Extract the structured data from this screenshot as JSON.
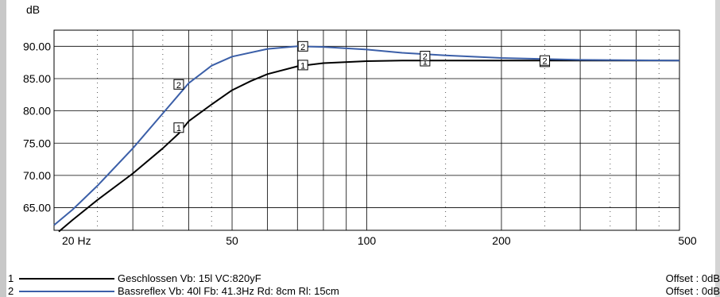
{
  "chart_data": {
    "type": "line",
    "y_unit_label": "dB",
    "x_scale": "log",
    "xlim": [
      20,
      500
    ],
    "ylim": [
      61.5,
      92.5
    ],
    "x_tick_labels": [
      {
        "value": 20,
        "label": "20 Hz"
      },
      {
        "value": 50,
        "label": "50"
      },
      {
        "value": 100,
        "label": "100"
      },
      {
        "value": 200,
        "label": "200"
      },
      {
        "value": 500,
        "label": "500"
      }
    ],
    "y_tick_labels": [
      {
        "value": 90,
        "label": "90.00"
      },
      {
        "value": 85,
        "label": "85.00"
      },
      {
        "value": 80,
        "label": "80.00"
      },
      {
        "value": 75,
        "label": "75.00"
      },
      {
        "value": 70,
        "label": "70.00"
      },
      {
        "value": 65,
        "label": "65.00"
      }
    ],
    "x_major_grid": [
      20,
      30,
      40,
      50,
      60,
      70,
      80,
      90,
      100,
      200,
      300,
      400,
      500
    ],
    "x_minor_dotted_grid": [
      25,
      35,
      45,
      150,
      250,
      350,
      450
    ],
    "series": [
      {
        "id": "1",
        "color": "#000000",
        "points": [
          [
            20.5,
            61.3
          ],
          [
            22,
            63.1
          ],
          [
            25,
            66.2
          ],
          [
            30,
            70.3
          ],
          [
            35,
            74.2
          ],
          [
            38,
            76.5
          ],
          [
            40,
            78.4
          ],
          [
            45,
            81.0
          ],
          [
            50,
            83.2
          ],
          [
            55,
            84.6
          ],
          [
            60,
            85.7
          ],
          [
            70,
            86.9
          ],
          [
            80,
            87.4
          ],
          [
            100,
            87.7
          ],
          [
            120,
            87.8
          ],
          [
            150,
            87.8
          ],
          [
            200,
            87.8
          ],
          [
            300,
            87.8
          ],
          [
            500,
            87.8
          ]
        ],
        "markers": [
          [
            38,
            77.4
          ],
          [
            72,
            87.1
          ],
          [
            135,
            87.7
          ],
          [
            250,
            87.6
          ]
        ]
      },
      {
        "id": "2",
        "color": "#3b5fa8",
        "points": [
          [
            20,
            62.3
          ],
          [
            22,
            64.7
          ],
          [
            25,
            68.4
          ],
          [
            30,
            74.2
          ],
          [
            35,
            79.6
          ],
          [
            40,
            84.3
          ],
          [
            45,
            87.0
          ],
          [
            50,
            88.4
          ],
          [
            60,
            89.6
          ],
          [
            70,
            90.0
          ],
          [
            80,
            89.9
          ],
          [
            100,
            89.5
          ],
          [
            120,
            89.0
          ],
          [
            150,
            88.6
          ],
          [
            200,
            88.2
          ],
          [
            300,
            87.9
          ],
          [
            500,
            87.8
          ]
        ],
        "markers": [
          [
            38,
            84.1
          ],
          [
            72,
            90.0
          ],
          [
            135,
            88.5
          ],
          [
            250,
            87.8
          ]
        ]
      }
    ]
  },
  "legend": [
    {
      "number": "1",
      "color": "#000000",
      "text": "Geschlossen Vb: 15l  VC:820yF",
      "offset": "Offset : 0dB"
    },
    {
      "number": "2",
      "color": "#3b5fa8",
      "text": "Bassreflex Vb: 40l  Fb: 41.3Hz  Rd: 8cm  Rl: 15cm",
      "offset": "Offset : 0dB"
    }
  ]
}
